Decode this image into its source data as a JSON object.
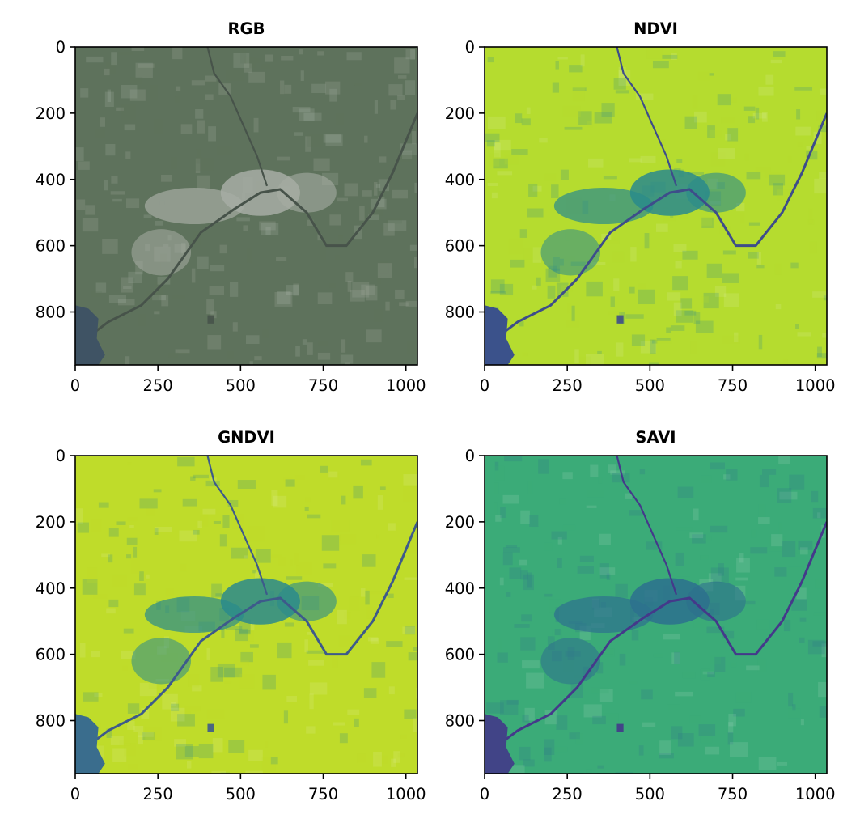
{
  "figure": {
    "background": "#ffffff"
  },
  "chart_data": [
    {
      "type": "heatmap",
      "title": "RGB",
      "x_ticks": [
        0,
        250,
        500,
        750,
        1000
      ],
      "y_ticks": [
        0,
        200,
        400,
        600,
        800
      ],
      "xlim": [
        0,
        1035
      ],
      "ylim": [
        960,
        0
      ],
      "grid": false,
      "palette": {
        "field": "#5e725c",
        "urban": "#a7ada4",
        "water": "#3f5364",
        "river": "#47534a"
      }
    },
    {
      "type": "heatmap",
      "title": "NDVI",
      "x_ticks": [
        0,
        250,
        500,
        750,
        1000
      ],
      "y_ticks": [
        0,
        200,
        400,
        600,
        800
      ],
      "xlim": [
        0,
        1035
      ],
      "ylim": [
        960,
        0
      ],
      "grid": false,
      "colormap": "viridis",
      "palette": {
        "field": "#b5dc2f",
        "urban": "#2a8a8c",
        "water": "#3b528b",
        "river": "#3d4d8a"
      }
    },
    {
      "type": "heatmap",
      "title": "GNDVI",
      "x_ticks": [
        0,
        250,
        500,
        750,
        1000
      ],
      "y_ticks": [
        0,
        200,
        400,
        600,
        800
      ],
      "xlim": [
        0,
        1035
      ],
      "ylim": [
        960,
        0
      ],
      "grid": false,
      "colormap": "viridis",
      "palette": {
        "field": "#bfdc2a",
        "urban": "#2a8a8c",
        "water": "#3a6d8d",
        "river": "#3d5a8b"
      }
    },
    {
      "type": "heatmap",
      "title": "SAVI",
      "x_ticks": [
        0,
        250,
        500,
        750,
        1000
      ],
      "y_ticks": [
        0,
        200,
        400,
        600,
        800
      ],
      "xlim": [
        0,
        1035
      ],
      "ylim": [
        960,
        0
      ],
      "grid": false,
      "colormap": "viridis",
      "palette": {
        "field": "#3bab78",
        "urban": "#2d708e",
        "water": "#414487",
        "river": "#44398a"
      }
    }
  ]
}
